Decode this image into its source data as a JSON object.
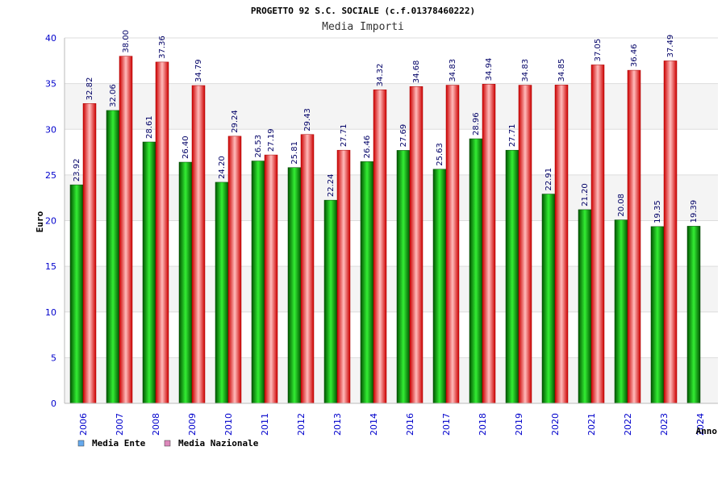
{
  "chart_data": {
    "type": "bar",
    "title": "PROGETTO 92 S.C. SOCIALE (c.f.01378460222)",
    "subtitle": "Media Importi",
    "xlabel": "Anno",
    "ylabel": "Euro",
    "ylim": [
      0,
      40
    ],
    "yticks": [
      0,
      5,
      10,
      15,
      20,
      25,
      30,
      35,
      40
    ],
    "grid": true,
    "legend_position": "bottom-left",
    "categories": [
      "2006",
      "2007",
      "2008",
      "2009",
      "2010",
      "2011",
      "2012",
      "2013",
      "2014",
      "2016",
      "2017",
      "2018",
      "2019",
      "2020",
      "2021",
      "2022",
      "2023",
      "2024"
    ],
    "series": [
      {
        "name": "Media Ente",
        "legend_color": "#66aaee",
        "bar_color_dark": "#006600",
        "bar_color_light": "#22dd22",
        "values": [
          23.92,
          32.06,
          28.61,
          26.4,
          24.2,
          26.53,
          25.81,
          22.24,
          26.46,
          27.69,
          25.63,
          28.96,
          27.71,
          22.91,
          21.2,
          20.08,
          19.35,
          19.39
        ],
        "labels": [
          "23.92",
          "32.06",
          "28.61",
          "26.40",
          "24.20",
          "26.53",
          "25.81",
          "22.24",
          "26.46",
          "27.69",
          "25.63",
          "28.96",
          "27.71",
          "22.91",
          "21.20",
          "20.08",
          "19.35",
          "19.39"
        ]
      },
      {
        "name": "Media Nazionale",
        "legend_color": "#dd88bb",
        "bar_color_dark": "#cc0000",
        "bar_color_light": "#ffaaaa",
        "values": [
          32.82,
          38.0,
          37.36,
          34.79,
          29.24,
          27.19,
          29.43,
          27.71,
          34.32,
          34.68,
          34.83,
          34.94,
          34.83,
          34.85,
          37.05,
          36.46,
          37.49,
          null
        ],
        "labels": [
          "32.82",
          "38.00",
          "37.36",
          "34.79",
          "29.24",
          "27.19",
          "29.43",
          "27.71",
          "34.32",
          "34.68",
          "34.83",
          "34.94",
          "34.83",
          "34.85",
          "37.05",
          "36.46",
          "37.49",
          null
        ]
      }
    ]
  }
}
